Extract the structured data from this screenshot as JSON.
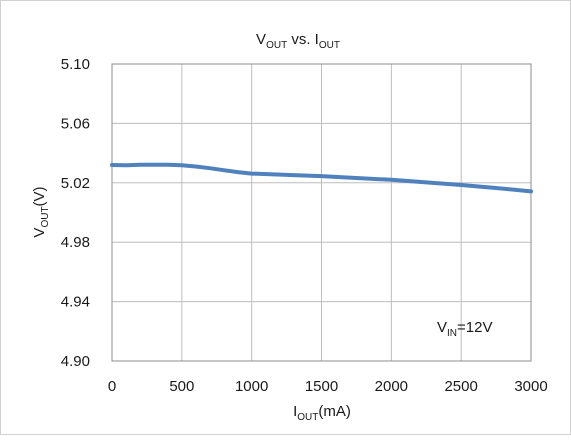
{
  "chart_data": {
    "type": "line",
    "title": {
      "main": "V",
      "main_sub": "OUT",
      "mid": " vs. I",
      "mid_sub": "OUT"
    },
    "xlabel": {
      "main": "I",
      "sub": "OUT",
      "tail": "(mA)"
    },
    "ylabel": {
      "main": "V",
      "sub": "OUT",
      "tail": "(V)"
    },
    "annotation": {
      "main": "V",
      "sub": "IN",
      "tail": "=12V"
    },
    "xlim": [
      0,
      3000
    ],
    "ylim": [
      4.9,
      5.1
    ],
    "x_ticks": [
      0,
      500,
      1000,
      1500,
      2000,
      2500,
      3000
    ],
    "x_tick_labels": [
      "0",
      "500",
      "1000",
      "1500",
      "2000",
      "2500",
      "3000"
    ],
    "y_ticks": [
      4.9,
      4.94,
      4.98,
      5.02,
      5.06,
      5.1
    ],
    "y_tick_labels": [
      "4.90",
      "4.94",
      "4.98",
      "5.02",
      "5.06",
      "5.10"
    ],
    "grid": true,
    "series": [
      {
        "color": "#4f81bd",
        "x": [
          0,
          100,
          200,
          300,
          400,
          500,
          600,
          700,
          800,
          900,
          1000,
          1250,
          1500,
          1750,
          2000,
          2250,
          2500,
          2750,
          3000
        ],
        "y": [
          5.032,
          5.0318,
          5.0322,
          5.0322,
          5.0321,
          5.0318,
          5.031,
          5.0298,
          5.0285,
          5.0272,
          5.0262,
          5.0253,
          5.0245,
          5.0232,
          5.022,
          5.0203,
          5.0185,
          5.0165,
          5.0142
        ]
      }
    ]
  }
}
